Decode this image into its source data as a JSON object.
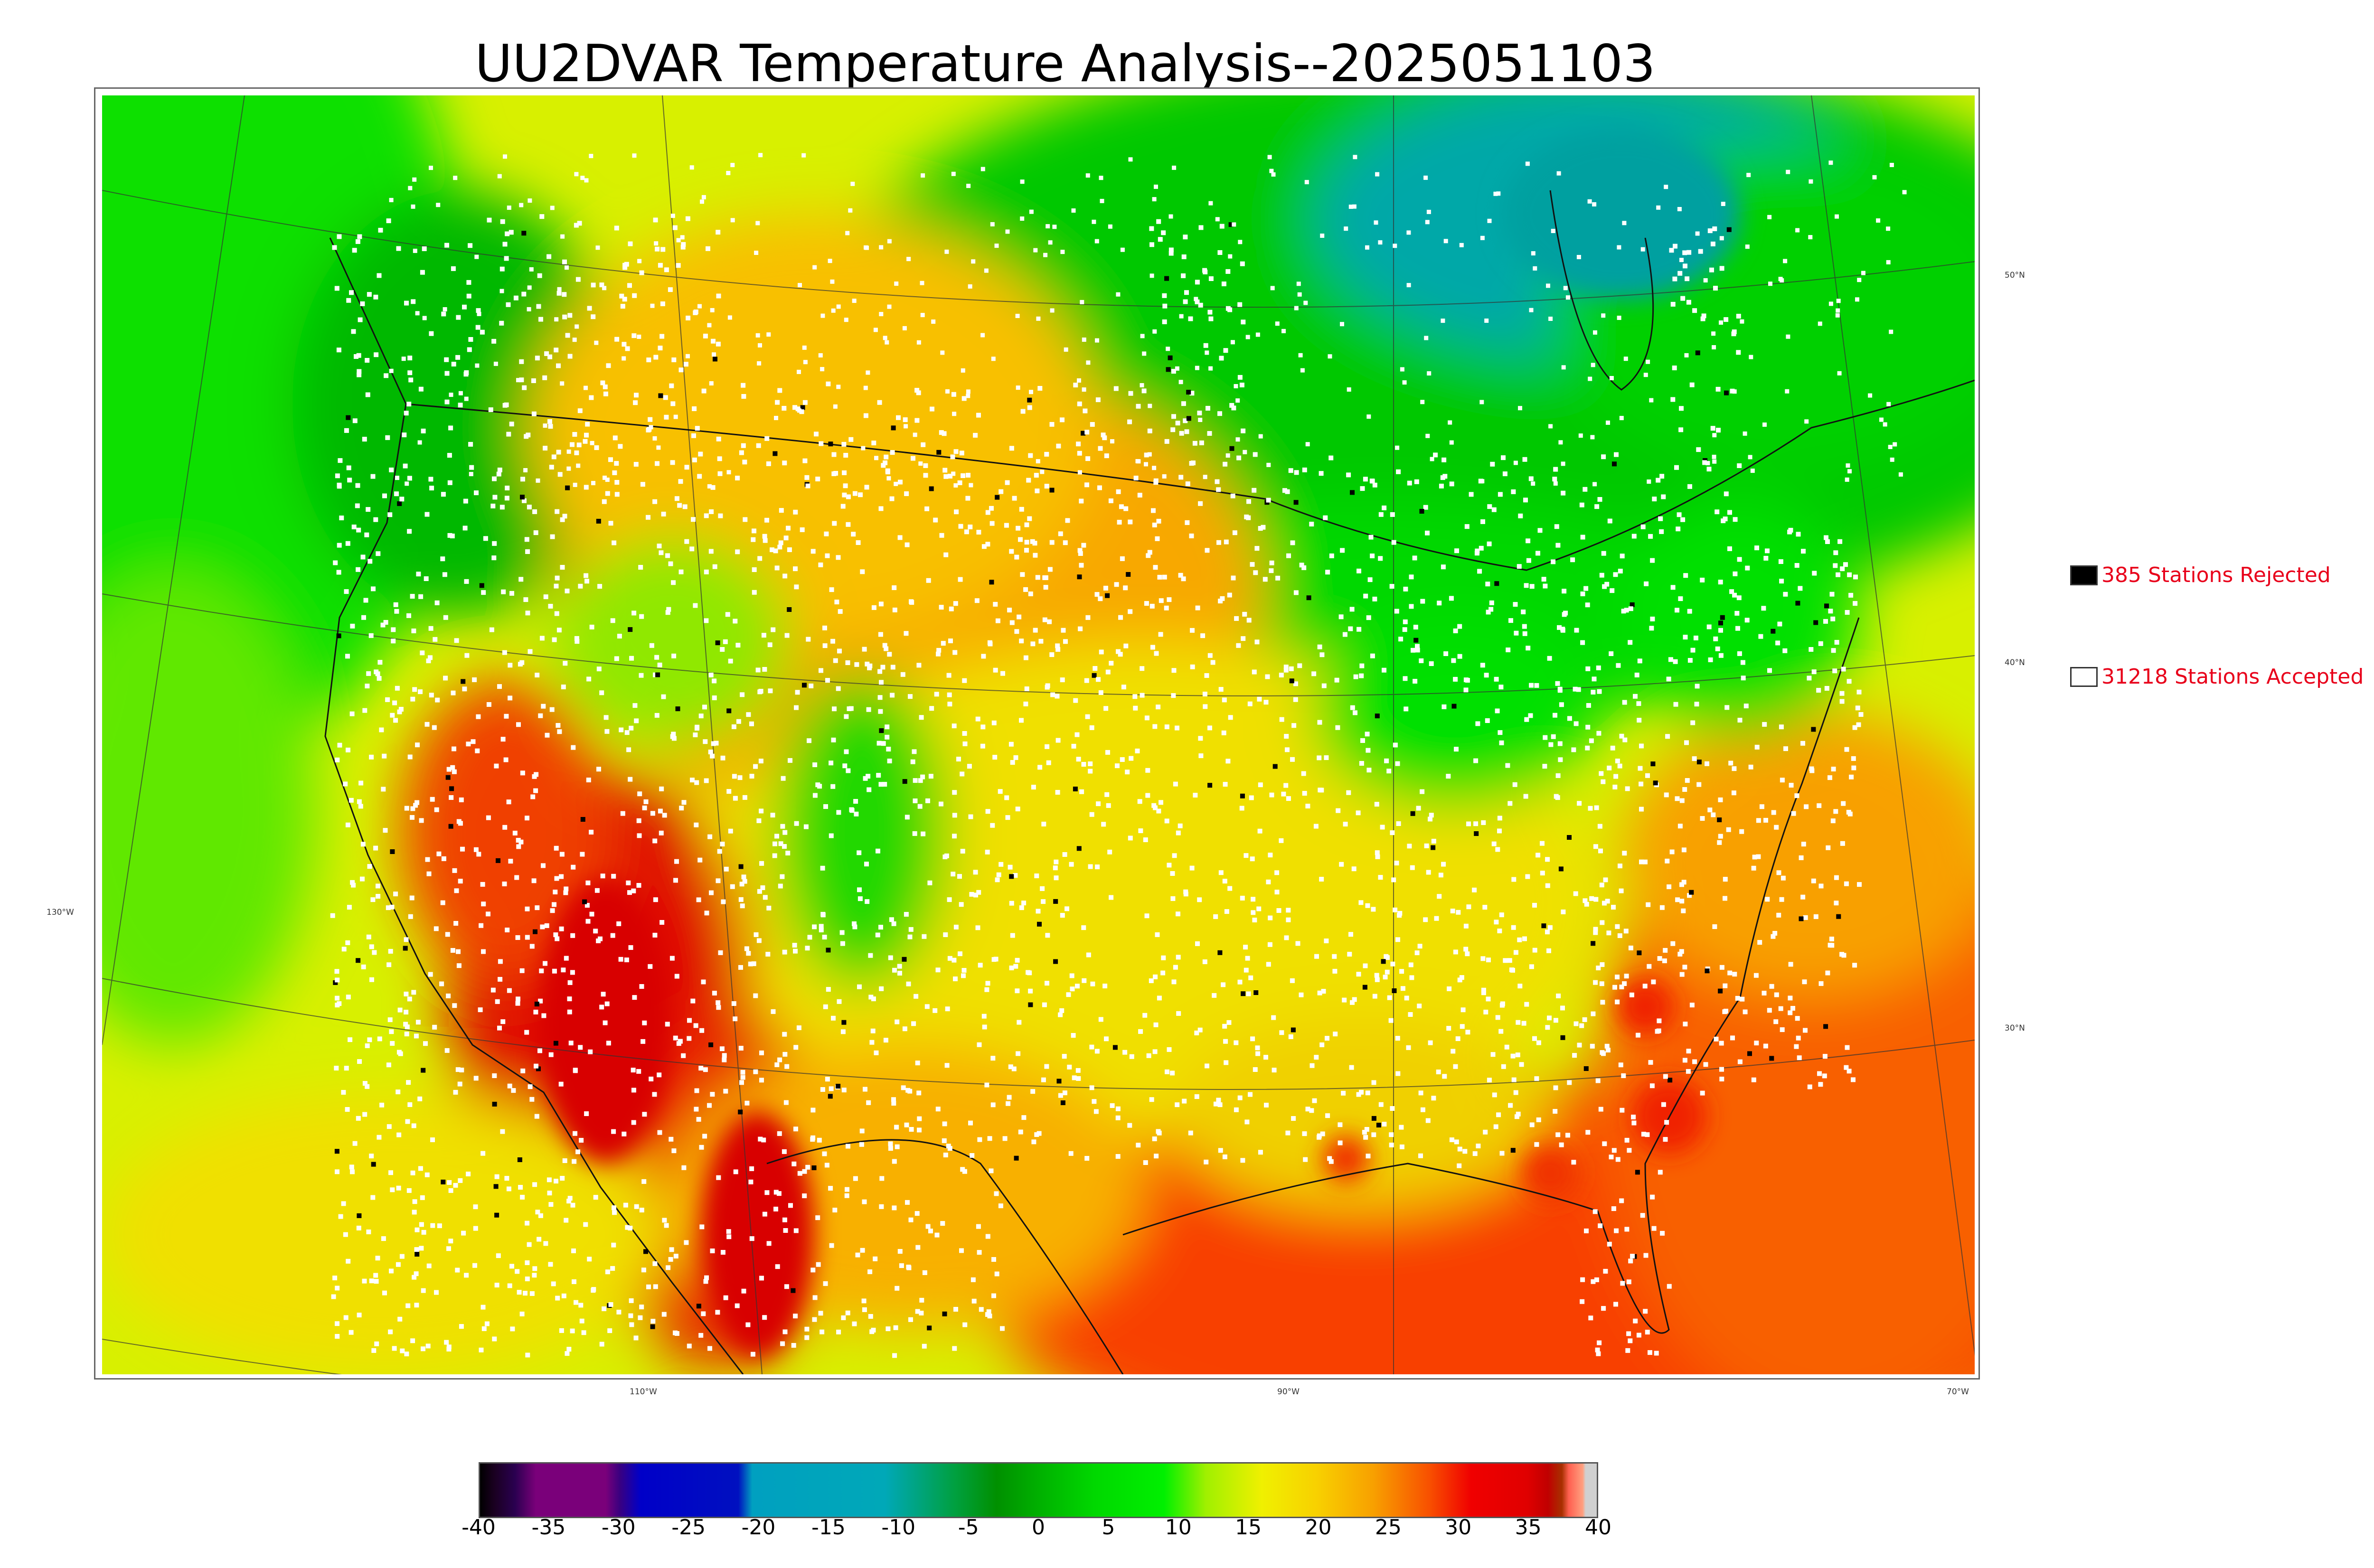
{
  "title": "UU2DVAR Temperature Analysis--2025051103",
  "legend": {
    "rejected": {
      "label": "385 Stations Rejected",
      "swatch_color": "#000000"
    },
    "accepted": {
      "label": "31218 Stations Accepted",
      "swatch_color": "#ffffff"
    }
  },
  "map": {
    "longitude_labels": [
      "130°W",
      "110°W",
      "90°W",
      "70°W"
    ],
    "latitude_labels": [
      "50°N",
      "40°N",
      "30°N"
    ],
    "station_colors": {
      "accepted": "#ffffff",
      "rejected": "#000000"
    }
  },
  "colorbar": {
    "ticks": [
      "-40",
      "-35",
      "-30",
      "-25",
      "-20",
      "-15",
      "-10",
      "-5",
      "0",
      "5",
      "10",
      "15",
      "20",
      "25",
      "30",
      "35",
      "40"
    ],
    "range": [
      -40,
      40
    ],
    "stops": [
      {
        "value": -40,
        "color": "#000000"
      },
      {
        "value": -39,
        "color": "#1a0020"
      },
      {
        "value": -37.5,
        "color": "#2a0050"
      },
      {
        "value": -36,
        "color": "#7a007a"
      },
      {
        "value": -31,
        "color": "#7a007a"
      },
      {
        "value": -30,
        "color": "#3a0080"
      },
      {
        "value": -28.5,
        "color": "#0000c8"
      },
      {
        "value": -21.5,
        "color": "#0010c0"
      },
      {
        "value": -20.5,
        "color": "#00a0c0"
      },
      {
        "value": -11,
        "color": "#00a8b8"
      },
      {
        "value": -6,
        "color": "#00a040"
      },
      {
        "value": -3,
        "color": "#009000"
      },
      {
        "value": 0,
        "color": "#00b000"
      },
      {
        "value": 4,
        "color": "#00d800"
      },
      {
        "value": 9,
        "color": "#00f000"
      },
      {
        "value": 12,
        "color": "#a0f000"
      },
      {
        "value": 16,
        "color": "#f0f000"
      },
      {
        "value": 20,
        "color": "#f8d000"
      },
      {
        "value": 24,
        "color": "#f8a000"
      },
      {
        "value": 28,
        "color": "#f85000"
      },
      {
        "value": 31,
        "color": "#f00000"
      },
      {
        "value": 35,
        "color": "#e00000"
      },
      {
        "value": 36.5,
        "color": "#c00000"
      },
      {
        "value": 37.5,
        "color": "#a83000"
      },
      {
        "value": 38,
        "color": "#ff6050"
      },
      {
        "value": 39,
        "color": "#ffa080"
      },
      {
        "value": 39.2,
        "color": "#d0d0d0"
      },
      {
        "value": 40,
        "color": "#d0d0d0"
      }
    ]
  }
}
